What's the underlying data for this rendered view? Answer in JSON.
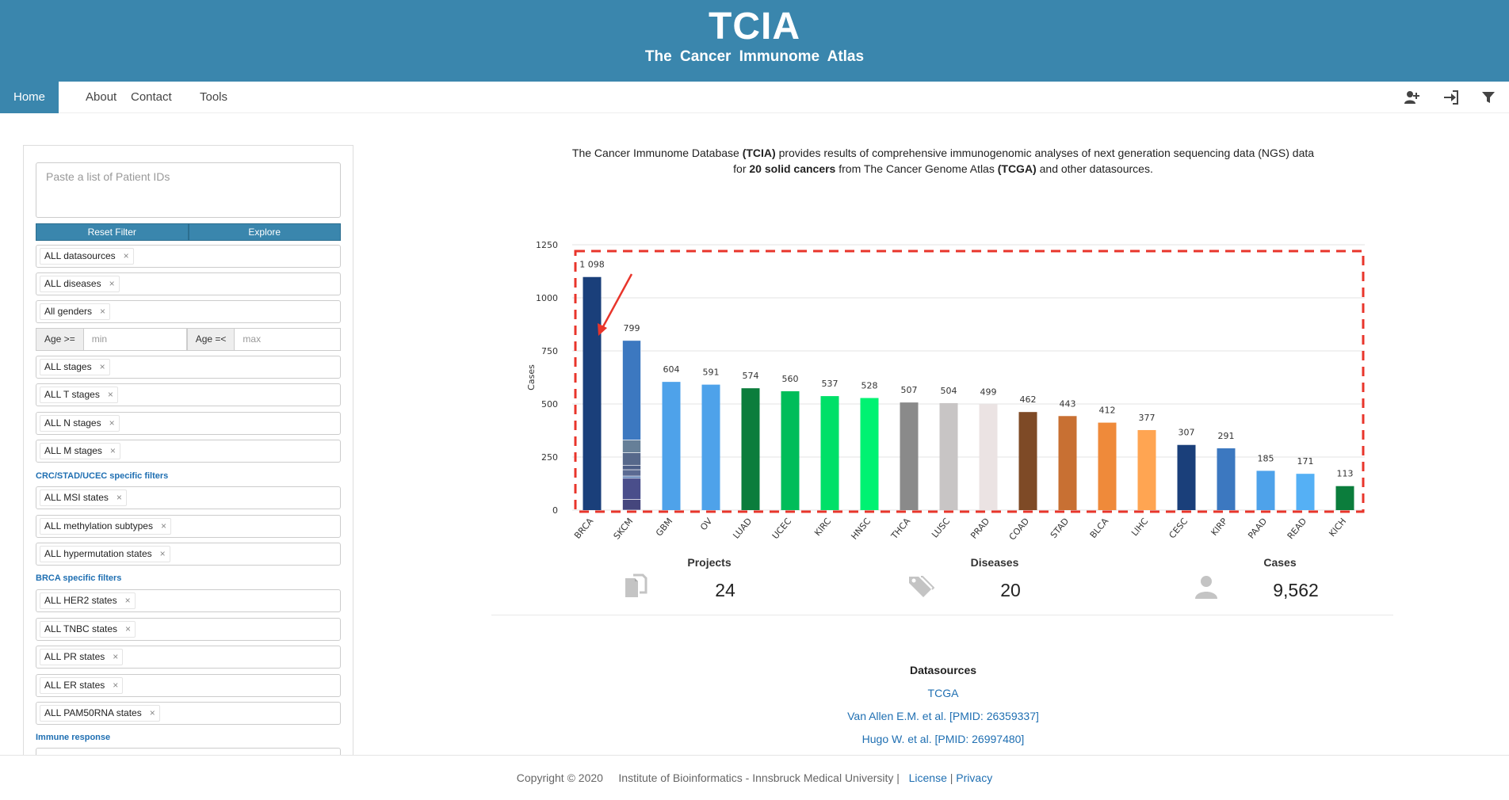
{
  "header": {
    "title": "TCIA",
    "subtitle": "The Cancer Immunome Atlas"
  },
  "nav": {
    "items": [
      "Home",
      "About",
      "Contact",
      "Tools"
    ],
    "icons": [
      "add-user-icon",
      "sign-in-icon",
      "filter-icon"
    ]
  },
  "sidebar": {
    "patient_ids_placeholder": "Paste a list of Patient IDs",
    "reset_label": "Reset Filter",
    "explore_label": "Explore",
    "filters": {
      "datasources": "ALL datasources",
      "diseases": "ALL diseases",
      "genders": "All genders",
      "age_min_label": "Age >=",
      "age_min_placeholder": "min",
      "age_max_label": "Age =<",
      "age_max_placeholder": "max",
      "stages": "ALL stages",
      "t_stages": "ALL T stages",
      "n_stages": "ALL N stages",
      "m_stages": "ALL M stages"
    },
    "crc_section": "CRC/STAD/UCEC specific filters",
    "crc_filters": [
      "ALL MSI states",
      "ALL methylation subtypes",
      "ALL hypermutation states"
    ],
    "brca_section": "BRCA specific filters",
    "brca_filters": [
      "ALL HER2 states",
      "ALL TNBC states",
      "ALL PR states",
      "ALL ER states",
      "ALL PAM50RNA states"
    ],
    "immune_section": "Immune response",
    "remove_symbol": "×"
  },
  "intro": {
    "part1": "The Cancer Immunome Database ",
    "bold1": "(TCIA)",
    "part2": " provides results of comprehensive immunogenomic analyses of next generation sequencing data (NGS) data for ",
    "bold2": "20 solid cancers",
    "part3": " from The Cancer Genome Atlas ",
    "bold3": "(TCGA)",
    "part4": " and other datasources."
  },
  "chart_data": {
    "type": "bar",
    "ylabel": "Cases",
    "ylim": [
      0,
      1250
    ],
    "yticks": [
      0,
      250,
      500,
      750,
      1000,
      1250
    ],
    "grid": true,
    "categories": [
      "BRCA",
      "SKCM",
      "GBM",
      "OV",
      "LUAD",
      "UCEC",
      "KIRC",
      "HNSC",
      "THCA",
      "LUSC",
      "PRAD",
      "COAD",
      "STAD",
      "BLCA",
      "LIHC",
      "CESC",
      "KIRP",
      "PAAD",
      "READ",
      "KICH"
    ],
    "values": [
      1098,
      799,
      604,
      591,
      574,
      560,
      537,
      528,
      507,
      504,
      499,
      462,
      443,
      412,
      377,
      307,
      291,
      185,
      171,
      113
    ],
    "value_labels": [
      "1 098",
      "799",
      "604",
      "591",
      "574",
      "560",
      "537",
      "528",
      "507",
      "504",
      "499",
      "462",
      "443",
      "412",
      "377",
      "307",
      "291",
      "185",
      "171",
      "113"
    ],
    "colors": [
      "#1a3f7a",
      "#3c78c0",
      "#4ea2ea",
      "#4ea2ea",
      "#0b7d3c",
      "#00bd5a",
      "#00e068",
      "#00f272",
      "#8a8a8a",
      "#c8c5c5",
      "#ebe3e3",
      "#7e4a26",
      "#c87033",
      "#ef8a3a",
      "#ffa552",
      "#1a3f7a",
      "#3c78c0",
      "#4ea2ea",
      "#55b0f5",
      "#0b7d3c"
    ],
    "skcm_segments": [
      {
        "value": 469,
        "color": "#3c78c0"
      },
      {
        "value": 60,
        "color": "#667f98"
      },
      {
        "value": 60,
        "color": "#56688b"
      },
      {
        "value": 20,
        "color": "#4b5d86"
      },
      {
        "value": 30,
        "color": "#5b6a92"
      },
      {
        "value": 10,
        "color": "#5b7fb5"
      },
      {
        "value": 100,
        "color": "#4a4e8b"
      },
      {
        "value": 50,
        "color": "#45467d"
      }
    ],
    "highlight": {
      "type": "dashed-box",
      "color": "#e8352b"
    }
  },
  "stats": [
    {
      "label": "Projects",
      "value": "24",
      "icon": "documents-icon"
    },
    {
      "label": "Diseases",
      "value": "20",
      "icon": "tags-icon"
    },
    {
      "label": "Cases",
      "value": "9,562",
      "icon": "user-icon"
    }
  ],
  "datasources": {
    "title": "Datasources",
    "links": [
      "TCGA",
      "Van Allen E.M. et al. [PMID: 26359337]",
      "Hugo W. et al. [PMID: 26997480]"
    ]
  },
  "footer": {
    "copyright": "Copyright © 2020",
    "institute": "Institute of Bioinformatics - Innsbruck Medical University |",
    "license": "License",
    "separator": "|",
    "privacy": "Privacy"
  },
  "colors": {
    "brand": "#3a86ad",
    "link": "#1f6fb2",
    "highlight": "#e8352b"
  }
}
